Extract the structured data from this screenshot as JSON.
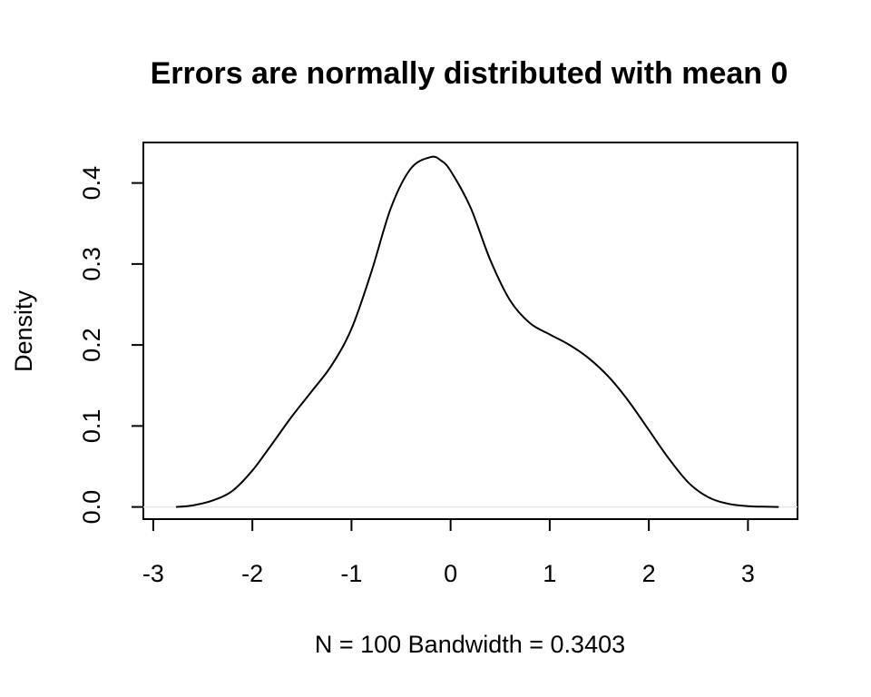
{
  "chart_data": {
    "type": "line",
    "title": "Errors are normally distributed with mean 0",
    "xlabel": "N = 100   Bandwidth = 0.3403",
    "ylabel": "Density",
    "xlim": [
      -3.1,
      3.5
    ],
    "ylim": [
      -0.015,
      0.45
    ],
    "x_ticks": [
      -3,
      -2,
      -1,
      0,
      1,
      2,
      3
    ],
    "x_tick_labels": [
      "-3",
      "-2",
      "-1",
      "0",
      "1",
      "2",
      "3"
    ],
    "y_ticks": [
      0.0,
      0.1,
      0.2,
      0.3,
      0.4
    ],
    "y_tick_labels": [
      "0.0",
      "0.1",
      "0.2",
      "0.3",
      "0.4"
    ],
    "grid": false,
    "baseline": 0,
    "series": [
      {
        "x": [
          -2.77,
          -2.6,
          -2.4,
          -2.2,
          -2.0,
          -1.8,
          -1.6,
          -1.4,
          -1.2,
          -1.0,
          -0.8,
          -0.6,
          -0.4,
          -0.2,
          -0.1,
          0.0,
          0.2,
          0.4,
          0.6,
          0.8,
          1.0,
          1.2,
          1.4,
          1.6,
          1.8,
          2.0,
          2.2,
          2.4,
          2.6,
          2.8,
          3.0,
          3.2,
          3.31
        ],
        "y": [
          0.0,
          0.002,
          0.008,
          0.02,
          0.045,
          0.078,
          0.112,
          0.143,
          0.175,
          0.22,
          0.29,
          0.37,
          0.418,
          0.432,
          0.428,
          0.415,
          0.37,
          0.305,
          0.255,
          0.227,
          0.213,
          0.2,
          0.183,
          0.16,
          0.13,
          0.095,
          0.06,
          0.03,
          0.012,
          0.004,
          0.001,
          0.0003,
          0.0
        ]
      }
    ]
  }
}
